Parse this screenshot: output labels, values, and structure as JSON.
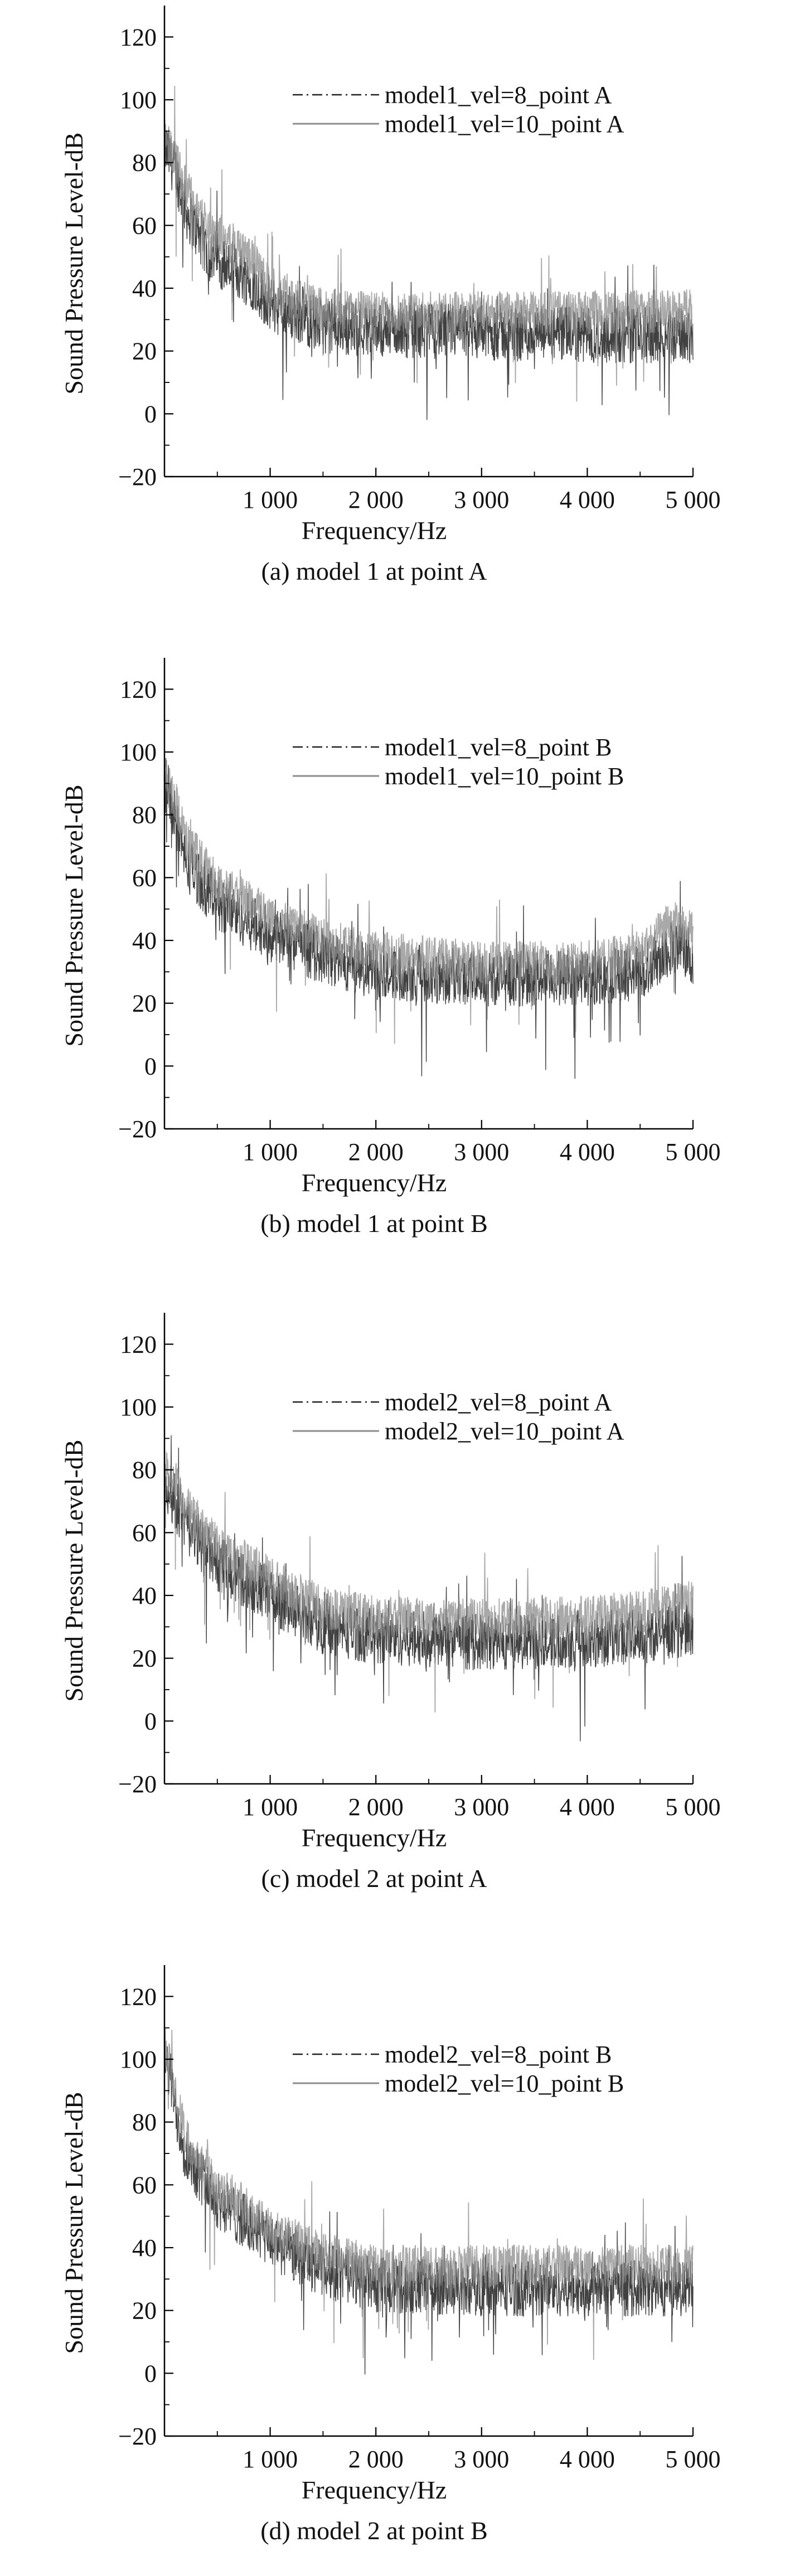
{
  "colors": {
    "series_dashdot": "#202020",
    "series_solid": "#8c8c8c",
    "axis": "#000000",
    "background": "#ffffff"
  },
  "chart_data": [
    {
      "type": "line",
      "caption": "(a) model 1 at point A",
      "xlabel": "Frequency/Hz",
      "ylabel": "Sound Pressure Level-dB",
      "xlim": [
        0,
        5000
      ],
      "ylim": [
        -20,
        130
      ],
      "xticks": [
        1000,
        2000,
        3000,
        4000,
        5000
      ],
      "xtick_labels": [
        "1 000",
        "2 000",
        "3 000",
        "4 000",
        "5 000"
      ],
      "yticks": [
        -20,
        0,
        20,
        40,
        60,
        80,
        100,
        120
      ],
      "ytick_labels": [
        "−20",
        "0",
        "20",
        "40",
        "60",
        "80",
        "100",
        "120"
      ],
      "grid": false,
      "legend_position": "top-right",
      "series": [
        {
          "name": "model1_vel=8_point A",
          "style": "dash-dot",
          "x": [
            0,
            100,
            200,
            400,
            600,
            800,
            1000,
            1500,
            2000,
            3000,
            4000,
            5000
          ],
          "y": [
            85,
            78,
            65,
            52,
            47,
            43,
            35,
            28,
            27,
            26,
            25,
            25
          ]
        },
        {
          "name": "model1_vel=10_point A",
          "style": "solid",
          "x": [
            0,
            100,
            200,
            400,
            600,
            800,
            1000,
            1500,
            2000,
            3000,
            4000,
            5000
          ],
          "y": [
            88,
            82,
            72,
            60,
            55,
            50,
            40,
            33,
            32,
            32,
            32,
            33
          ]
        }
      ]
    },
    {
      "type": "line",
      "caption": "(b) model 1 at point B",
      "xlabel": "Frequency/Hz",
      "ylabel": "Sound Pressure Level-dB",
      "xlim": [
        0,
        5000
      ],
      "ylim": [
        -20,
        130
      ],
      "xticks": [
        1000,
        2000,
        3000,
        4000,
        5000
      ],
      "xtick_labels": [
        "1 000",
        "2 000",
        "3 000",
        "4 000",
        "5 000"
      ],
      "yticks": [
        -20,
        0,
        20,
        40,
        60,
        80,
        100,
        120
      ],
      "ytick_labels": [
        "−20",
        "0",
        "20",
        "40",
        "60",
        "80",
        "100",
        "120"
      ],
      "grid": false,
      "legend_position": "top-right",
      "series": [
        {
          "name": "model1_vel=8_point B",
          "style": "dash-dot",
          "x": [
            0,
            100,
            200,
            500,
            1000,
            1500,
            2000,
            3000,
            4000,
            4500,
            4800,
            5000
          ],
          "y": [
            88,
            80,
            65,
            52,
            42,
            35,
            30,
            28,
            28,
            30,
            38,
            35
          ]
        },
        {
          "name": "model1_vel=10_point B",
          "style": "solid",
          "x": [
            0,
            100,
            200,
            500,
            1000,
            1500,
            2000,
            3000,
            4000,
            4500,
            4800,
            5000
          ],
          "y": [
            92,
            85,
            72,
            58,
            48,
            40,
            36,
            33,
            33,
            36,
            46,
            42
          ]
        }
      ]
    },
    {
      "type": "line",
      "caption": "(c) model 2 at point A",
      "xlabel": "Frequency/Hz",
      "ylabel": "Sound Pressure Level-dB",
      "xlim": [
        0,
        5000
      ],
      "ylim": [
        -20,
        130
      ],
      "xticks": [
        1000,
        2000,
        3000,
        4000,
        5000
      ],
      "xtick_labels": [
        "1 000",
        "2 000",
        "3 000",
        "4 000",
        "5 000"
      ],
      "yticks": [
        -20,
        0,
        20,
        40,
        60,
        80,
        100,
        120
      ],
      "ytick_labels": [
        "−20",
        "0",
        "20",
        "40",
        "60",
        "80",
        "100",
        "120"
      ],
      "grid": false,
      "legend_position": "top-right",
      "series": [
        {
          "name": "model2_vel=8_point A",
          "style": "dash-dot",
          "x": [
            0,
            100,
            200,
            500,
            1000,
            1500,
            2000,
            3000,
            4000,
            4500,
            5000
          ],
          "y": [
            75,
            70,
            62,
            50,
            40,
            30,
            27,
            25,
            26,
            27,
            30
          ]
        },
        {
          "name": "model2_vel=10_point A",
          "style": "solid",
          "x": [
            0,
            100,
            200,
            500,
            1000,
            1500,
            2000,
            3000,
            4000,
            4500,
            5000
          ],
          "y": [
            80,
            76,
            68,
            56,
            46,
            36,
            33,
            32,
            33,
            35,
            38
          ]
        }
      ]
    },
    {
      "type": "line",
      "caption": "(d) model 2 at point B",
      "xlabel": "Frequency/Hz",
      "ylabel": "Sound Pressure Level-dB",
      "xlim": [
        0,
        5000
      ],
      "ylim": [
        -20,
        130
      ],
      "xticks": [
        1000,
        2000,
        3000,
        4000,
        5000
      ],
      "xtick_labels": [
        "1 000",
        "2 000",
        "3 000",
        "4 000",
        "5 000"
      ],
      "yticks": [
        -20,
        0,
        20,
        40,
        60,
        80,
        100,
        120
      ],
      "ytick_labels": [
        "−20",
        "0",
        "20",
        "40",
        "60",
        "80",
        "100",
        "120"
      ],
      "grid": false,
      "legend_position": "top-right",
      "series": [
        {
          "name": "model2_vel=8_point B",
          "style": "dash-dot",
          "x": [
            0,
            50,
            100,
            200,
            500,
            1000,
            1500,
            2000,
            3000,
            4000,
            5000
          ],
          "y": [
            100,
            95,
            85,
            70,
            55,
            42,
            33,
            28,
            27,
            27,
            27
          ]
        },
        {
          "name": "model2_vel=10_point B",
          "style": "solid",
          "x": [
            0,
            50,
            100,
            200,
            500,
            1000,
            1500,
            2000,
            3000,
            4000,
            5000
          ],
          "y": [
            105,
            100,
            90,
            75,
            60,
            46,
            38,
            34,
            34,
            34,
            34
          ]
        }
      ]
    }
  ]
}
